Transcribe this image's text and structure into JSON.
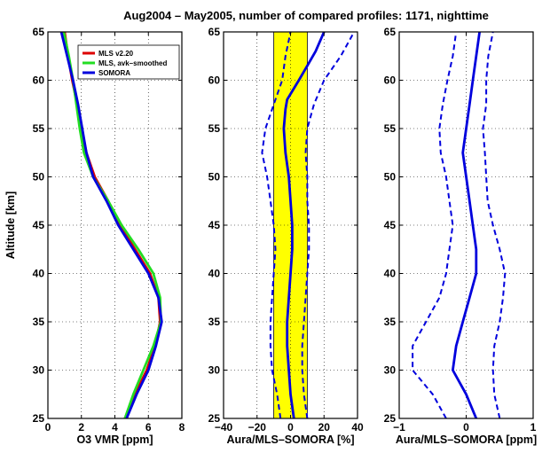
{
  "title": "Aug2004 – May2005,  number of compared profiles: 1171, nighttime",
  "chart_data": [
    {
      "type": "line",
      "xlabel": "O3 VMR [ppm]",
      "ylabel": "Altitude [km]",
      "xlim": [
        0,
        8
      ],
      "ylim": [
        25,
        65
      ],
      "xticks": [
        "0",
        "2",
        "4",
        "6",
        "8"
      ],
      "yticks": [
        "25",
        "30",
        "35",
        "40",
        "45",
        "50",
        "55",
        "60",
        "65"
      ],
      "grid": true,
      "legend": "top-right",
      "colors": {
        "mls": "#dd0000",
        "avk": "#22dd22",
        "somora": "#0000dd"
      },
      "series": [
        {
          "name": "MLS v2.20",
          "color": "#dd0000",
          "x": [
            4.6,
            5.2,
            5.9,
            6.4,
            6.7,
            6.6,
            6.1,
            5.2,
            4.3,
            3.6,
            2.8,
            2.3,
            2.0,
            1.75,
            1.45,
            1.2,
            1.0
          ],
          "y": [
            25,
            27.5,
            30,
            32.5,
            35,
            37.5,
            40,
            42.5,
            45,
            47.5,
            50,
            52.5,
            55,
            57.5,
            60,
            62.5,
            65
          ]
        },
        {
          "name": "MLS, avk–smoothed",
          "color": "#22dd22",
          "x": [
            4.6,
            5.1,
            5.7,
            6.3,
            6.75,
            6.7,
            6.3,
            5.4,
            4.4,
            3.6,
            2.7,
            2.15,
            1.9,
            1.7,
            1.5,
            1.25,
            0.95
          ],
          "y": [
            25,
            27.5,
            30,
            32.5,
            35,
            37.5,
            40,
            42.5,
            45,
            47.5,
            50,
            52.5,
            55,
            57.5,
            60,
            62.5,
            65
          ]
        },
        {
          "name": "SOMORA",
          "color": "#0000dd",
          "x": [
            4.7,
            5.3,
            6.0,
            6.45,
            6.8,
            6.6,
            6.0,
            5.1,
            4.2,
            3.5,
            2.7,
            2.3,
            2.05,
            1.8,
            1.5,
            1.15,
            0.8
          ],
          "y": [
            25,
            27.5,
            30,
            32.5,
            35,
            37.5,
            40,
            42.5,
            45,
            47.5,
            50,
            52.5,
            55,
            57.5,
            60,
            62.5,
            65
          ]
        }
      ]
    },
    {
      "type": "line",
      "xlabel": "Aura/MLS–SOMORA [%]",
      "ylabel": "",
      "xlim": [
        -40,
        40
      ],
      "ylim": [
        25,
        65
      ],
      "xticks": [
        "−40",
        "−20",
        "0",
        "20",
        "40"
      ],
      "yticks": [
        "25",
        "30",
        "35",
        "40",
        "45",
        "50",
        "55",
        "60",
        "65"
      ],
      "grid": true,
      "shaded_band": {
        "x": [
          -10,
          10
        ],
        "color": "#ffff00"
      },
      "series": [
        {
          "style": "solid",
          "color": "#0000dd",
          "x": [
            2,
            0,
            -1,
            -2,
            -2,
            -1,
            0,
            1,
            1,
            0,
            -1,
            -3,
            -4,
            -3,
            -2,
            5,
            10,
            15,
            20
          ],
          "y": [
            25,
            27.5,
            30,
            32.5,
            35,
            37.5,
            40,
            42.5,
            45,
            47.5,
            50,
            52.5,
            55,
            57,
            58,
            60,
            61.5,
            63,
            65
          ]
        },
        {
          "style": "dashed",
          "color": "#0000dd",
          "x": [
            -6,
            -8,
            -11,
            -12,
            -12,
            -11,
            -10,
            -9,
            -10,
            -12,
            -14,
            -17,
            -15,
            -10,
            -5,
            -3,
            0
          ],
          "y": [
            25,
            27.5,
            30,
            32.5,
            35,
            37.5,
            40,
            42.5,
            45,
            47.5,
            50,
            52.5,
            55,
            57.5,
            60,
            62.5,
            65
          ]
        },
        {
          "style": "dashed",
          "color": "#0000dd",
          "x": [
            10,
            8,
            7,
            7,
            8,
            9,
            10,
            11,
            11,
            10,
            10,
            9,
            10,
            14,
            20,
            30,
            38
          ],
          "y": [
            25,
            27.5,
            30,
            32.5,
            35,
            37.5,
            40,
            42.5,
            45,
            47.5,
            50,
            52.5,
            55,
            57.5,
            60,
            62.5,
            65
          ]
        }
      ]
    },
    {
      "type": "line",
      "xlabel": "Aura/MLS–SOMORA [ppm]",
      "ylabel": "",
      "xlim": [
        -1,
        1
      ],
      "ylim": [
        25,
        65
      ],
      "xticks": [
        "−1",
        "0",
        "1"
      ],
      "yticks": [
        "25",
        "30",
        "35",
        "40",
        "45",
        "50",
        "55",
        "60",
        "65"
      ],
      "grid": true,
      "series": [
        {
          "style": "solid",
          "color": "#0000dd",
          "x": [
            0.15,
            0.0,
            -0.2,
            -0.15,
            -0.05,
            0.05,
            0.15,
            0.15,
            0.1,
            0.05,
            0.0,
            -0.05,
            0.0,
            0.05,
            0.1,
            0.15,
            0.2
          ],
          "y": [
            25,
            27.5,
            30,
            32.5,
            35,
            37.5,
            40,
            42.5,
            45,
            47.5,
            50,
            52.5,
            55,
            57.5,
            60,
            62.5,
            65
          ]
        },
        {
          "style": "dashed",
          "color": "#0000dd",
          "x": [
            -0.3,
            -0.5,
            -0.8,
            -0.8,
            -0.6,
            -0.4,
            -0.3,
            -0.25,
            -0.2,
            -0.25,
            -0.3,
            -0.38,
            -0.4,
            -0.35,
            -0.28,
            -0.2,
            -0.15
          ],
          "y": [
            25,
            27.5,
            30,
            32.5,
            35,
            37.5,
            40,
            42.5,
            45,
            47.5,
            50,
            52.5,
            55,
            57.5,
            60,
            62.5,
            65
          ]
        },
        {
          "style": "dashed",
          "color": "#0000dd",
          "x": [
            0.5,
            0.42,
            0.4,
            0.42,
            0.5,
            0.55,
            0.58,
            0.5,
            0.4,
            0.32,
            0.3,
            0.28,
            0.25,
            0.3,
            0.3,
            0.33,
            0.4
          ],
          "y": [
            25,
            27.5,
            30,
            32.5,
            35,
            37.5,
            40,
            42.5,
            45,
            47.5,
            50,
            52.5,
            55,
            57.5,
            60,
            62.5,
            65
          ]
        }
      ]
    }
  ]
}
